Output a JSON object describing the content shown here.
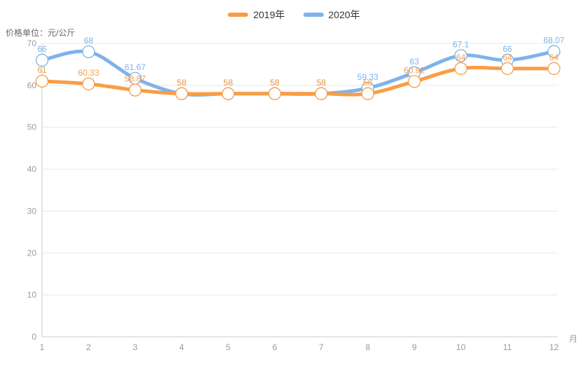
{
  "chart_data": {
    "type": "line",
    "title": "",
    "y_axis_name": "价格单位：元/公斤",
    "x_axis_unit": "月",
    "categories": [
      "1",
      "2",
      "3",
      "4",
      "5",
      "6",
      "7",
      "8",
      "9",
      "10",
      "11",
      "12"
    ],
    "series": [
      {
        "name": "2019年",
        "color": "#f99d45",
        "values": [
          61,
          60.33,
          58.87,
          58,
          58,
          58,
          58,
          58,
          60.92,
          64,
          64,
          64
        ]
      },
      {
        "name": "2020年",
        "color": "#7db3ea",
        "values": [
          66,
          68,
          61.67,
          58,
          58,
          58,
          58,
          59.33,
          63,
          67.1,
          66,
          68.07
        ]
      }
    ],
    "ylim": [
      0,
      70
    ],
    "y_ticks": [
      0,
      10,
      20,
      30,
      40,
      50,
      60,
      70
    ],
    "grid": true,
    "smooth": true,
    "marker": "hollow-circle",
    "legend_position": "top-center",
    "data_labels": true
  },
  "style": {
    "grid_line_color": "#e8e8e8",
    "axis_line_color": "#cccccc",
    "tick_label_color": "#999999",
    "legend_text_color": "#333333",
    "axis_name_color": "#666666",
    "background": "#ffffff"
  }
}
